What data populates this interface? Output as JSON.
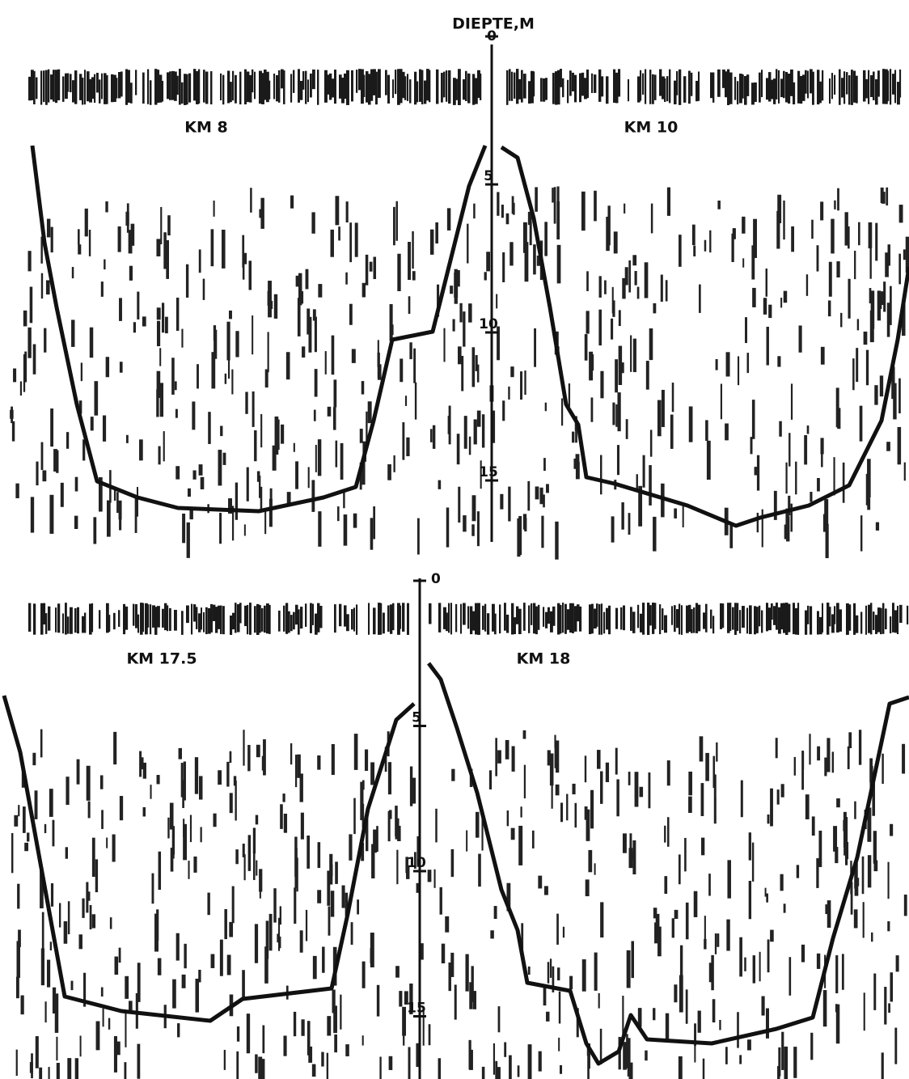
{
  "header": {
    "title": "DIEPTE,M"
  },
  "panels": [
    {
      "depth_ticks": [
        0,
        5,
        10,
        15
      ],
      "left_label": "KM 8",
      "right_label": "KM 10"
    },
    {
      "depth_ticks": [
        0,
        5,
        10,
        15
      ],
      "left_label": "KM 17.5",
      "right_label": "KM 18"
    }
  ]
}
